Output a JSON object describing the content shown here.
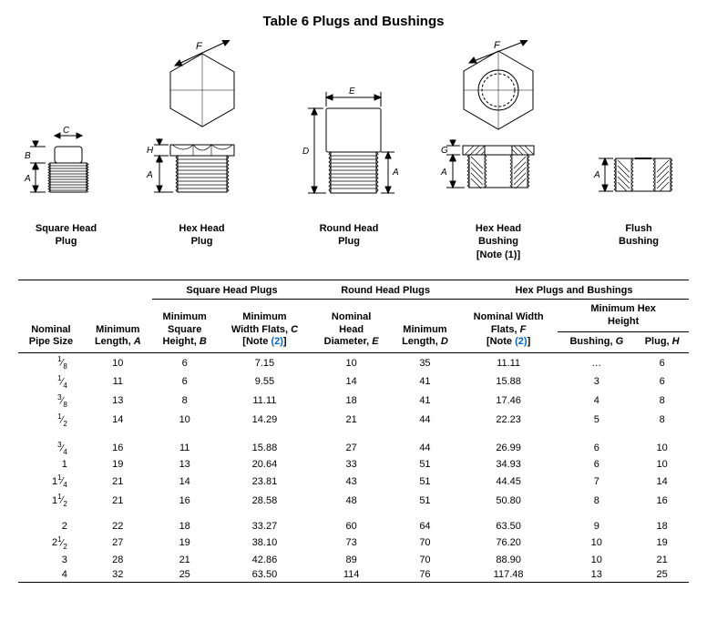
{
  "title": "Table 6 Plugs and Bushings",
  "diagram_labels": {
    "square": "Square Head\nPlug",
    "hex_plug": "Hex Head\nPlug",
    "round": "Round Head\nPlug",
    "hex_bush": "Hex Head\nBushing",
    "hex_bush_note": "[Note (1)]",
    "flush": "Flush\nBushing"
  },
  "dim_letters": {
    "A": "A",
    "B": "B",
    "C": "C",
    "D": "D",
    "E": "E",
    "F": "F",
    "G": "G",
    "H": "H"
  },
  "table": {
    "section_heads": {
      "square": "Square Head Plugs",
      "round": "Round Head Plugs",
      "hex": "Hex Plugs and Bushings"
    },
    "col_heads": {
      "nominal_pipe": "Nominal\nPipe Size",
      "min_length_a": "Minimum\nLength, ",
      "min_length_a_sym": "A",
      "sq_height_b": "Minimum\nSquare\nHeight, ",
      "sq_height_b_sym": "B",
      "width_flats_c": "Minimum\nWidth Flats, ",
      "width_flats_c_sym": "C",
      "note2": "[Note ",
      "note2_link": "(2)",
      "note2_close": "]",
      "head_dia_e": "Nominal\nHead\nDiameter, ",
      "head_dia_e_sym": "E",
      "min_length_d": "Minimum\nLength, ",
      "min_length_d_sym": "D",
      "width_flats_f": "Nominal Width\nFlats, ",
      "width_flats_f_sym": "F",
      "min_hex_height": "Minimum Hex\nHeight",
      "bushing_g": "Bushing, ",
      "bushing_g_sym": "G",
      "plug_h": "Plug, ",
      "plug_h_sym": "H"
    },
    "rows": [
      {
        "pipe": "1/8",
        "a": "10",
        "b": "6",
        "c": "7.15",
        "e": "10",
        "d": "35",
        "f": "11.11",
        "g": "…",
        "h": "6"
      },
      {
        "pipe": "1/4",
        "a": "11",
        "b": "6",
        "c": "9.55",
        "e": "14",
        "d": "41",
        "f": "15.88",
        "g": "3",
        "h": "6"
      },
      {
        "pipe": "3/8",
        "a": "13",
        "b": "8",
        "c": "11.11",
        "e": "18",
        "d": "41",
        "f": "17.46",
        "g": "4",
        "h": "8"
      },
      {
        "pipe": "1/2",
        "a": "14",
        "b": "10",
        "c": "14.29",
        "e": "21",
        "d": "44",
        "f": "22.23",
        "g": "5",
        "h": "8"
      },
      {
        "spacer": true
      },
      {
        "pipe": "3/4",
        "a": "16",
        "b": "11",
        "c": "15.88",
        "e": "27",
        "d": "44",
        "f": "26.99",
        "g": "6",
        "h": "10"
      },
      {
        "pipe": "1",
        "a": "19",
        "b": "13",
        "c": "20.64",
        "e": "33",
        "d": "51",
        "f": "34.93",
        "g": "6",
        "h": "10"
      },
      {
        "pipe": "1 1/4",
        "a": "21",
        "b": "14",
        "c": "23.81",
        "e": "43",
        "d": "51",
        "f": "44.45",
        "g": "7",
        "h": "14"
      },
      {
        "pipe": "1 1/2",
        "a": "21",
        "b": "16",
        "c": "28.58",
        "e": "48",
        "d": "51",
        "f": "50.80",
        "g": "8",
        "h": "16"
      },
      {
        "spacer": true
      },
      {
        "pipe": "2",
        "a": "22",
        "b": "18",
        "c": "33.27",
        "e": "60",
        "d": "64",
        "f": "63.50",
        "g": "9",
        "h": "18"
      },
      {
        "pipe": "2 1/2",
        "a": "27",
        "b": "19",
        "c": "38.10",
        "e": "73",
        "d": "70",
        "f": "76.20",
        "g": "10",
        "h": "19"
      },
      {
        "pipe": "3",
        "a": "28",
        "b": "21",
        "c": "42.86",
        "e": "89",
        "d": "70",
        "f": "88.90",
        "g": "10",
        "h": "21"
      },
      {
        "pipe": "4",
        "a": "32",
        "b": "25",
        "c": "63.50",
        "e": "114",
        "d": "76",
        "f": "117.48",
        "g": "13",
        "h": "25"
      }
    ]
  }
}
